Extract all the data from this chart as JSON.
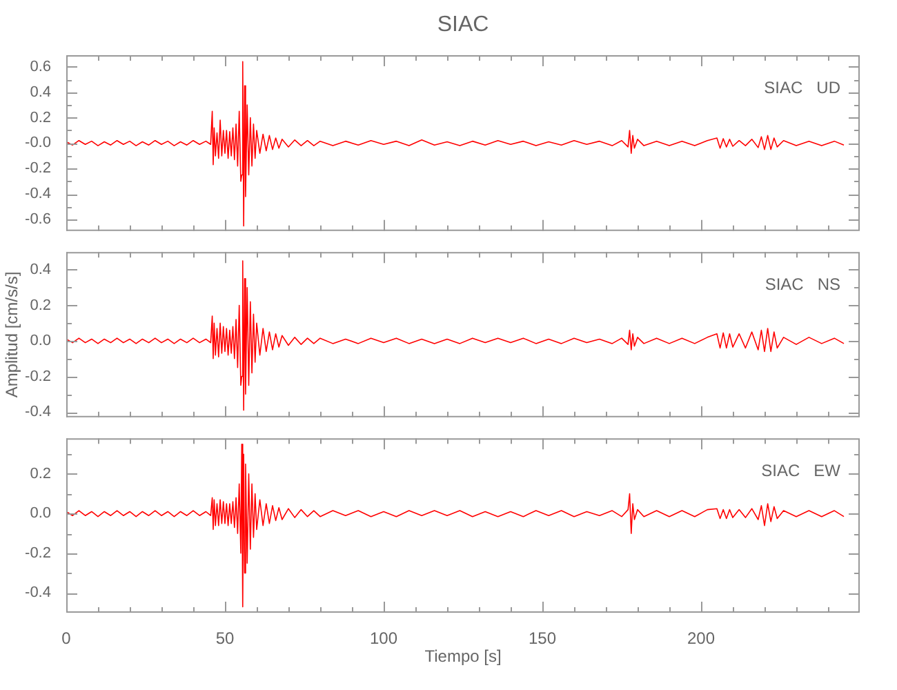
{
  "chart_data": [
    {
      "type": "line",
      "title": "SIAC",
      "annotations": [
        "SIAC   UD"
      ],
      "tick_labels": "y",
      "color": "#ff0000",
      "xlim": [
        0,
        250
      ],
      "xticks": [
        0,
        {
          "value": 10,
          "label": null
        },
        {
          "value": 20,
          "label": null
        },
        {
          "value": 30,
          "label": null
        },
        {
          "value": 40,
          "label": null
        },
        50,
        {
          "value": 60,
          "label": null
        },
        {
          "value": 70,
          "label": null
        },
        {
          "value": 80,
          "label": null
        },
        {
          "value": 90,
          "label": null
        },
        100,
        {
          "value": 110,
          "label": null
        },
        {
          "value": 120,
          "label": null
        },
        {
          "value": 130,
          "label": null
        },
        {
          "value": 140,
          "label": null
        },
        150,
        {
          "value": 160,
          "label": null
        },
        {
          "value": 170,
          "label": null
        },
        {
          "value": 180,
          "label": null
        },
        {
          "value": 190,
          "label": null
        },
        200,
        {
          "value": 210,
          "label": null
        },
        {
          "value": 220,
          "label": null
        },
        {
          "value": 230,
          "label": null
        },
        {
          "value": 240,
          "label": null
        }
      ],
      "ylim": [
        -0.69,
        0.69
      ],
      "yticks": [
        -0.6,
        {
          "value": -0.5,
          "label": null
        },
        -0.4,
        {
          "value": -0.3,
          "label": null
        },
        -0.2,
        {
          "value": -0.1,
          "label": null
        },
        {
          "value": 0,
          "label": "-0.0"
        },
        {
          "value": 0.1,
          "label": null
        },
        0.2,
        {
          "value": 0.3,
          "label": null
        },
        0.4,
        {
          "value": 0.5,
          "label": null
        },
        0.6
      ],
      "x": [
        0,
        2,
        4,
        6,
        8,
        10,
        12,
        14,
        16,
        18,
        20,
        22,
        24,
        26,
        28,
        30,
        32,
        34,
        36,
        38,
        40,
        42,
        44,
        45.5,
        46,
        46.3,
        46.6,
        47,
        47.5,
        48,
        48.5,
        49,
        49.5,
        50,
        50.5,
        51,
        51.5,
        52,
        52.5,
        53,
        53.5,
        54,
        54.5,
        55,
        55.3,
        55.6,
        55.9,
        56.2,
        56.5,
        57,
        57.5,
        58,
        58.5,
        59,
        59.5,
        60,
        61,
        62,
        63,
        64,
        65,
        66,
        67,
        68,
        70,
        72,
        74,
        76,
        78,
        80,
        84,
        88,
        92,
        96,
        100,
        104,
        108,
        112,
        116,
        120,
        124,
        128,
        132,
        136,
        140,
        144,
        148,
        152,
        156,
        160,
        164,
        168,
        172,
        175,
        177,
        177.5,
        178,
        178.5,
        179,
        180,
        182,
        186,
        190,
        194,
        198,
        202,
        205,
        206,
        207,
        208,
        209,
        210,
        212,
        214,
        216,
        218,
        219,
        220,
        221,
        222,
        223,
        224,
        226,
        230,
        234,
        238,
        242,
        245
      ],
      "values": [
        0.01,
        -0.015,
        0.02,
        -0.01,
        0.015,
        -0.02,
        0.01,
        -0.015,
        0.02,
        -0.01,
        0.015,
        -0.02,
        0.01,
        -0.015,
        0.02,
        -0.01,
        0.015,
        -0.02,
        0.01,
        -0.015,
        0.02,
        -0.01,
        0.015,
        -0.01,
        0.25,
        -0.17,
        0.12,
        -0.1,
        0.08,
        -0.12,
        0.18,
        -0.1,
        0.1,
        -0.08,
        0.1,
        -0.12,
        0.09,
        -0.1,
        0.12,
        -0.13,
        0.15,
        -0.18,
        0.25,
        -0.3,
        -0.25,
        0.64,
        -0.65,
        0.45,
        -0.42,
        0.3,
        -0.25,
        0.2,
        -0.18,
        0.15,
        -0.12,
        0.1,
        -0.08,
        0.07,
        -0.06,
        0.06,
        -0.05,
        0.04,
        -0.04,
        0.03,
        -0.03,
        0.025,
        -0.02,
        0.02,
        -0.02,
        0.015,
        -0.02,
        0.015,
        -0.015,
        0.02,
        -0.01,
        0.015,
        -0.02,
        0.025,
        -0.015,
        0.01,
        -0.02,
        0.015,
        -0.015,
        0.02,
        -0.01,
        0.015,
        -0.02,
        0.01,
        -0.015,
        0.02,
        -0.01,
        0.015,
        -0.02,
        0.02,
        -0.03,
        0.1,
        -0.08,
        0.06,
        -0.04,
        0.03,
        -0.02,
        0.015,
        -0.02,
        0.015,
        -0.02,
        0.02,
        0.04,
        -0.04,
        0.035,
        -0.03,
        0.03,
        -0.025,
        0.02,
        -0.02,
        0.03,
        -0.035,
        0.05,
        -0.05,
        0.06,
        -0.05,
        0.04,
        -0.03,
        0.02,
        -0.02,
        0.015,
        -0.02,
        0.015,
        -0.015
      ]
    },
    {
      "type": "line",
      "ylabel": "Amplitud [cm/s/s]",
      "annotations": [
        "SIAC   NS"
      ],
      "tick_labels": "y",
      "color": "#ff0000",
      "xlim": [
        0,
        250
      ],
      "xticks": [
        0,
        {
          "value": 10,
          "label": null
        },
        {
          "value": 20,
          "label": null
        },
        {
          "value": 30,
          "label": null
        },
        {
          "value": 40,
          "label": null
        },
        50,
        {
          "value": 60,
          "label": null
        },
        {
          "value": 70,
          "label": null
        },
        {
          "value": 80,
          "label": null
        },
        {
          "value": 90,
          "label": null
        },
        100,
        {
          "value": 110,
          "label": null
        },
        {
          "value": 120,
          "label": null
        },
        {
          "value": 130,
          "label": null
        },
        {
          "value": 140,
          "label": null
        },
        150,
        {
          "value": 160,
          "label": null
        },
        {
          "value": 170,
          "label": null
        },
        {
          "value": 180,
          "label": null
        },
        {
          "value": 190,
          "label": null
        },
        200,
        {
          "value": 210,
          "label": null
        },
        {
          "value": 220,
          "label": null
        },
        {
          "value": 230,
          "label": null
        },
        {
          "value": 240,
          "label": null
        }
      ],
      "ylim": [
        -0.43,
        0.5
      ],
      "yticks": [
        -0.4,
        {
          "value": -0.3,
          "label": null
        },
        -0.2,
        {
          "value": -0.1,
          "label": null
        },
        {
          "value": 0,
          "label": "0.0"
        },
        {
          "value": 0.1,
          "label": null
        },
        0.2,
        {
          "value": 0.3,
          "label": null
        },
        0.4
      ],
      "x": [
        0,
        2,
        4,
        6,
        8,
        10,
        12,
        14,
        16,
        18,
        20,
        22,
        24,
        26,
        28,
        30,
        32,
        34,
        36,
        38,
        40,
        42,
        44,
        45.5,
        46,
        46.3,
        46.6,
        47,
        47.5,
        48,
        48.5,
        49,
        49.5,
        50,
        50.5,
        51,
        51.5,
        52,
        52.5,
        53,
        53.5,
        54,
        54.5,
        55,
        55.3,
        55.6,
        55.9,
        56.2,
        56.5,
        57,
        57.5,
        58,
        58.5,
        59,
        59.5,
        60,
        61,
        62,
        63,
        64,
        65,
        66,
        67,
        68,
        70,
        72,
        74,
        76,
        78,
        80,
        84,
        88,
        92,
        96,
        100,
        104,
        108,
        112,
        116,
        120,
        124,
        128,
        132,
        136,
        140,
        144,
        148,
        152,
        156,
        160,
        164,
        168,
        172,
        175,
        177,
        177.5,
        178,
        178.5,
        179,
        180,
        182,
        186,
        190,
        194,
        198,
        202,
        205,
        206,
        207,
        208,
        209,
        210,
        212,
        214,
        216,
        218,
        219,
        220,
        221,
        222,
        223,
        224,
        226,
        230,
        234,
        238,
        242,
        245
      ],
      "values": [
        0.01,
        -0.01,
        0.015,
        -0.01,
        0.01,
        -0.015,
        0.01,
        -0.01,
        0.015,
        -0.01,
        0.01,
        -0.015,
        0.01,
        -0.01,
        0.015,
        -0.01,
        0.01,
        -0.015,
        0.01,
        -0.01,
        0.015,
        -0.01,
        0.01,
        -0.01,
        0.14,
        -0.1,
        0.1,
        -0.08,
        0.07,
        -0.09,
        0.1,
        -0.07,
        0.08,
        -0.06,
        0.07,
        -0.08,
        0.06,
        -0.07,
        0.08,
        -0.1,
        0.12,
        -0.15,
        0.2,
        -0.25,
        -0.2,
        0.45,
        -0.39,
        0.35,
        -0.3,
        0.3,
        -0.25,
        0.22,
        -0.18,
        0.15,
        -0.12,
        0.1,
        -0.08,
        0.07,
        -0.06,
        0.05,
        -0.05,
        0.04,
        -0.035,
        0.03,
        -0.025,
        0.02,
        -0.02,
        0.015,
        -0.015,
        0.015,
        -0.015,
        0.01,
        -0.015,
        0.015,
        -0.01,
        0.015,
        -0.015,
        0.01,
        -0.015,
        0.01,
        -0.015,
        0.015,
        -0.01,
        0.015,
        -0.01,
        0.015,
        -0.015,
        0.01,
        -0.015,
        0.015,
        -0.01,
        0.01,
        -0.015,
        0.015,
        -0.02,
        0.06,
        -0.05,
        0.04,
        -0.03,
        0.02,
        -0.015,
        0.015,
        -0.015,
        0.015,
        -0.015,
        0.02,
        0.04,
        -0.04,
        0.045,
        -0.04,
        0.04,
        -0.035,
        0.04,
        -0.04,
        0.05,
        -0.05,
        0.06,
        -0.06,
        0.07,
        -0.06,
        0.05,
        -0.04,
        0.02,
        -0.02,
        0.02,
        -0.015,
        0.015,
        -0.015
      ]
    },
    {
      "type": "line",
      "xlabel": "Tiempo [s]",
      "annotations": [
        "SIAC   EW"
      ],
      "color": "#ff0000",
      "xlim": [
        0,
        250
      ],
      "xticks": [
        0,
        {
          "value": 10,
          "label": null
        },
        {
          "value": 20,
          "label": null
        },
        {
          "value": 30,
          "label": null
        },
        {
          "value": 40,
          "label": null
        },
        50,
        {
          "value": 60,
          "label": null
        },
        {
          "value": 70,
          "label": null
        },
        {
          "value": 80,
          "label": null
        },
        {
          "value": 90,
          "label": null
        },
        100,
        {
          "value": 110,
          "label": null
        },
        {
          "value": 120,
          "label": null
        },
        {
          "value": 130,
          "label": null
        },
        {
          "value": 140,
          "label": null
        },
        150,
        {
          "value": 160,
          "label": null
        },
        {
          "value": 170,
          "label": null
        },
        {
          "value": 180,
          "label": null
        },
        {
          "value": 190,
          "label": null
        },
        200,
        {
          "value": 210,
          "label": null
        },
        {
          "value": 220,
          "label": null
        },
        {
          "value": 230,
          "label": null
        },
        {
          "value": 240,
          "label": null
        }
      ],
      "ylim": [
        -0.5,
        0.38
      ],
      "yticks": [
        -0.4,
        {
          "value": -0.3,
          "label": null
        },
        -0.2,
        {
          "value": -0.1,
          "label": null
        },
        {
          "value": 0,
          "label": "0.0"
        },
        {
          "value": 0.1,
          "label": null
        },
        0.2,
        {
          "value": 0.3,
          "label": null
        }
      ],
      "x": [
        0,
        2,
        4,
        6,
        8,
        10,
        12,
        14,
        16,
        18,
        20,
        22,
        24,
        26,
        28,
        30,
        32,
        34,
        36,
        38,
        40,
        42,
        44,
        45.5,
        46,
        46.3,
        46.6,
        47,
        47.5,
        48,
        48.5,
        49,
        49.5,
        50,
        50.5,
        51,
        51.5,
        52,
        52.5,
        53,
        53.5,
        54,
        54.5,
        55,
        55.3,
        55.6,
        55.9,
        56.2,
        56.5,
        57,
        57.5,
        58,
        58.5,
        59,
        59.5,
        60,
        61,
        62,
        63,
        64,
        65,
        66,
        67,
        68,
        70,
        72,
        74,
        76,
        78,
        80,
        84,
        88,
        92,
        96,
        100,
        104,
        108,
        112,
        116,
        120,
        124,
        128,
        132,
        136,
        140,
        144,
        148,
        152,
        156,
        160,
        164,
        168,
        172,
        175,
        177,
        177.5,
        178,
        178.5,
        179,
        180,
        182,
        186,
        190,
        194,
        198,
        202,
        205,
        206,
        207,
        208,
        209,
        210,
        212,
        214,
        216,
        218,
        219,
        220,
        221,
        222,
        223,
        224,
        226,
        230,
        234,
        238,
        242,
        245
      ],
      "values": [
        0.01,
        -0.01,
        0.015,
        -0.01,
        0.01,
        -0.015,
        0.01,
        -0.01,
        0.015,
        -0.01,
        0.01,
        -0.015,
        0.01,
        -0.01,
        0.015,
        -0.01,
        0.01,
        -0.015,
        0.01,
        -0.01,
        0.015,
        -0.01,
        0.01,
        -0.01,
        0.08,
        -0.08,
        0.07,
        -0.06,
        0.05,
        -0.06,
        0.07,
        -0.05,
        0.06,
        -0.05,
        0.05,
        -0.06,
        0.05,
        -0.05,
        0.06,
        -0.07,
        0.08,
        -0.1,
        0.15,
        -0.2,
        0.35,
        -0.47,
        0.3,
        -0.3,
        0.25,
        -0.25,
        0.2,
        -0.18,
        0.15,
        -0.12,
        0.1,
        -0.08,
        0.07,
        -0.06,
        0.05,
        -0.05,
        0.04,
        -0.035,
        0.03,
        -0.03,
        0.025,
        -0.02,
        0.02,
        -0.015,
        0.015,
        -0.015,
        0.015,
        -0.01,
        0.015,
        -0.015,
        0.01,
        -0.015,
        0.015,
        -0.01,
        0.015,
        -0.01,
        0.015,
        -0.015,
        0.01,
        -0.015,
        0.01,
        -0.015,
        0.015,
        -0.01,
        0.015,
        -0.015,
        0.01,
        -0.01,
        0.015,
        -0.015,
        0.02,
        0.1,
        -0.1,
        0.05,
        -0.03,
        0.02,
        -0.015,
        0.015,
        -0.015,
        0.015,
        -0.015,
        0.02,
        0.025,
        -0.025,
        0.02,
        -0.025,
        0.02,
        -0.02,
        0.02,
        -0.02,
        0.025,
        -0.03,
        0.04,
        -0.06,
        0.05,
        -0.04,
        0.035,
        -0.025,
        0.015,
        -0.015,
        0.015,
        -0.015,
        0.015,
        -0.015
      ]
    }
  ]
}
